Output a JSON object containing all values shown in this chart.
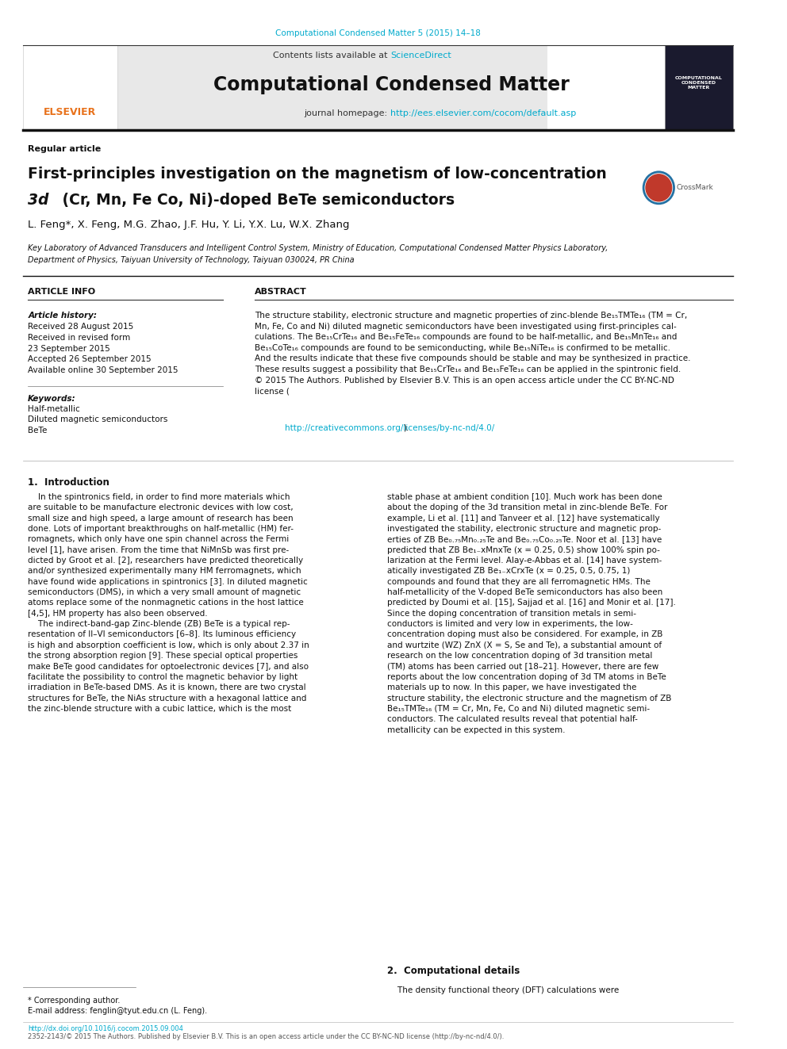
{
  "page_width": 9.92,
  "page_height": 13.23,
  "background_color": "#ffffff",
  "journal_ref": "Computational Condensed Matter 5 (2015) 14–18",
  "journal_ref_color": "#00aacc",
  "header_bg": "#e8e8e8",
  "header_text": "Contents lists available at ",
  "sciencedirect_text": "ScienceDirect",
  "sciencedirect_color": "#00aacc",
  "journal_title": "Computational Condensed Matter",
  "journal_homepage_label": "journal homepage: ",
  "journal_url": "http://ees.elsevier.com/cocom/default.asp",
  "journal_url_color": "#00aacc",
  "article_type": "Regular article",
  "paper_title_line1": "First-principles investigation on the magnetism of low-concentration",
  "paper_title_line2": "3d (Cr, Mn, Fe Co, Ni)-doped BeTe semiconductors",
  "authors": "L. Feng*, X. Feng, M.G. Zhao, J.F. Hu, Y. Li, Y.X. Lu, W.X. Zhang",
  "affiliation_line1": "Key Laboratory of Advanced Transducers and Intelligent Control System, Ministry of Education, Computational Condensed Matter Physics Laboratory,",
  "affiliation_line2": "Department of Physics, Taiyuan University of Technology, Taiyuan 030024, PR China",
  "article_info_title": "ARTICLE INFO",
  "abstract_title": "ABSTRACT",
  "article_history_label": "Article history:",
  "history_items": [
    "Received 28 August 2015",
    "Received in revised form",
    "23 September 2015",
    "Accepted 26 September 2015",
    "Available online 30 September 2015"
  ],
  "keywords_label": "Keywords:",
  "keywords": [
    "Half-metallic",
    "Diluted magnetic semiconductors",
    "BeTe"
  ],
  "abstract_url": "http://creativecommons.org/licenses/by-nc-nd/4.0/",
  "abstract_url_color": "#00aacc",
  "section1_title": "1.  Introduction",
  "section2_title": "2.  Computational details",
  "comp_details_text": "    The density functional theory (DFT) calculations were",
  "footer_doi": "http://dx.doi.org/10.1016/j.cocom.2015.09.004",
  "footer_issn": "2352-2143/© 2015 The Authors. Published by Elsevier B.V. This is an open access article under the CC BY-NC-ND license (http://by-nc-nd/4.0/).",
  "footer_url_color": "#00aacc",
  "footnote_1": "* Corresponding author.",
  "footnote_2": "E-mail address: fenglin@tyut.edu.cn (L. Feng)."
}
